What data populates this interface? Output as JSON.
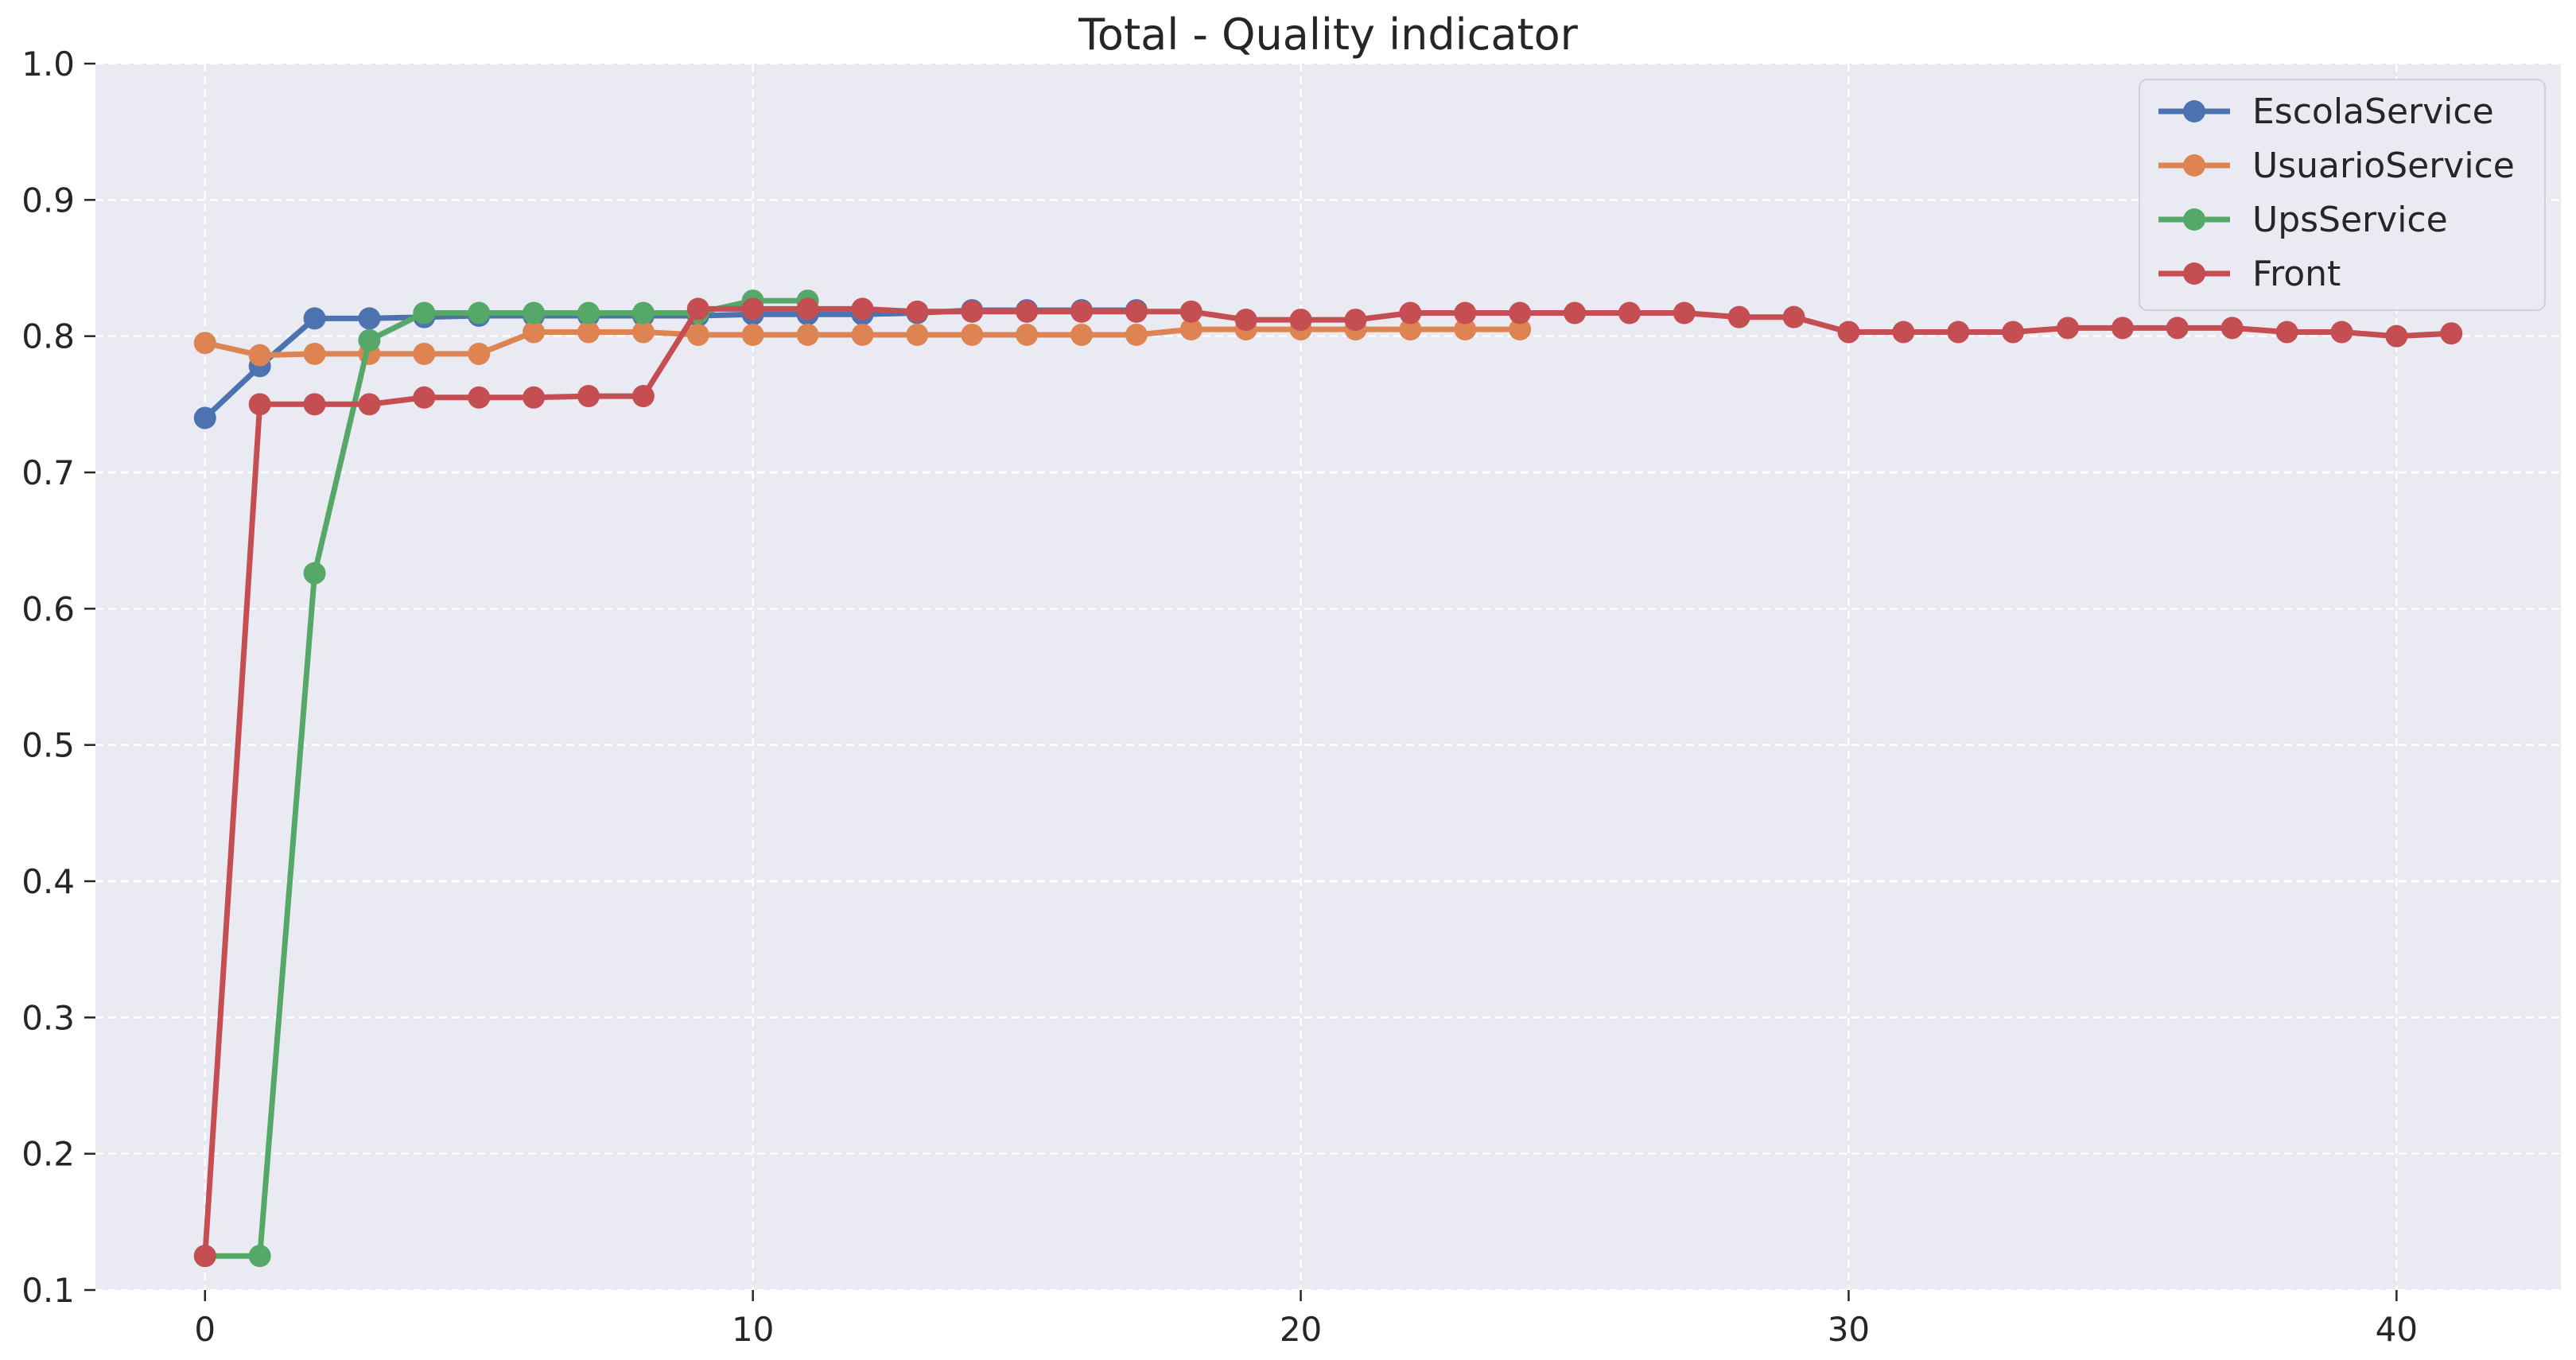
{
  "chart_data": {
    "type": "line",
    "title": "Total - Quality indicator",
    "xlabel": "",
    "ylabel": "",
    "xlim": [
      -2,
      43
    ],
    "ylim": [
      0.1,
      1.0
    ],
    "xticks": [
      "0",
      "10",
      "20",
      "30",
      "40"
    ],
    "xtick_values": [
      0,
      10,
      20,
      30,
      40
    ],
    "yticks": [
      "0.1",
      "0.2",
      "0.3",
      "0.4",
      "0.5",
      "0.6",
      "0.7",
      "0.8",
      "0.9",
      "1.0"
    ],
    "ytick_values": [
      0.1,
      0.2,
      0.3,
      0.4,
      0.5,
      0.6,
      0.7,
      0.8,
      0.9,
      1.0
    ],
    "grid": true,
    "legend_position": "top-right",
    "series": [
      {
        "name": "EscolaService",
        "color": "#4c72b0",
        "x": [
          0,
          1,
          2,
          3,
          4,
          5,
          6,
          7,
          8,
          9,
          10,
          11,
          12,
          13,
          14,
          15,
          16,
          17
        ],
        "y": [
          0.74,
          0.778,
          0.813,
          0.813,
          0.814,
          0.815,
          0.815,
          0.815,
          0.815,
          0.815,
          0.816,
          0.816,
          0.816,
          0.817,
          0.819,
          0.819,
          0.819,
          0.819
        ]
      },
      {
        "name": "UsuarioService",
        "color": "#dd8452",
        "x": [
          0,
          1,
          2,
          3,
          4,
          5,
          6,
          7,
          8,
          9,
          10,
          11,
          12,
          13,
          14,
          15,
          16,
          17,
          18,
          19,
          20,
          21,
          22,
          23,
          24
        ],
        "y": [
          0.795,
          0.786,
          0.787,
          0.787,
          0.787,
          0.787,
          0.803,
          0.803,
          0.803,
          0.801,
          0.801,
          0.801,
          0.801,
          0.801,
          0.801,
          0.801,
          0.801,
          0.801,
          0.805,
          0.805,
          0.805,
          0.805,
          0.805,
          0.805,
          0.805
        ]
      },
      {
        "name": "UpsService",
        "color": "#55a868",
        "x": [
          0,
          1,
          2,
          3,
          4,
          5,
          6,
          7,
          8,
          9,
          10,
          11
        ],
        "y": [
          0.125,
          0.125,
          0.626,
          0.797,
          0.817,
          0.817,
          0.817,
          0.817,
          0.817,
          0.817,
          0.826,
          0.826
        ]
      },
      {
        "name": "Front",
        "color": "#c44e52",
        "x": [
          0,
          1,
          2,
          3,
          4,
          5,
          6,
          7,
          8,
          9,
          10,
          11,
          12,
          13,
          14,
          15,
          16,
          17,
          18,
          19,
          20,
          21,
          22,
          23,
          24,
          25,
          26,
          27,
          28,
          29,
          30,
          31,
          32,
          33,
          34,
          35,
          36,
          37,
          38,
          39,
          40,
          41
        ],
        "y": [
          0.125,
          0.75,
          0.75,
          0.75,
          0.755,
          0.755,
          0.755,
          0.756,
          0.756,
          0.82,
          0.82,
          0.82,
          0.82,
          0.818,
          0.818,
          0.818,
          0.818,
          0.818,
          0.818,
          0.812,
          0.812,
          0.812,
          0.817,
          0.817,
          0.817,
          0.817,
          0.817,
          0.817,
          0.814,
          0.814,
          0.803,
          0.803,
          0.803,
          0.803,
          0.806,
          0.806,
          0.806,
          0.806,
          0.803,
          0.803,
          0.8,
          0.802
        ]
      }
    ]
  }
}
